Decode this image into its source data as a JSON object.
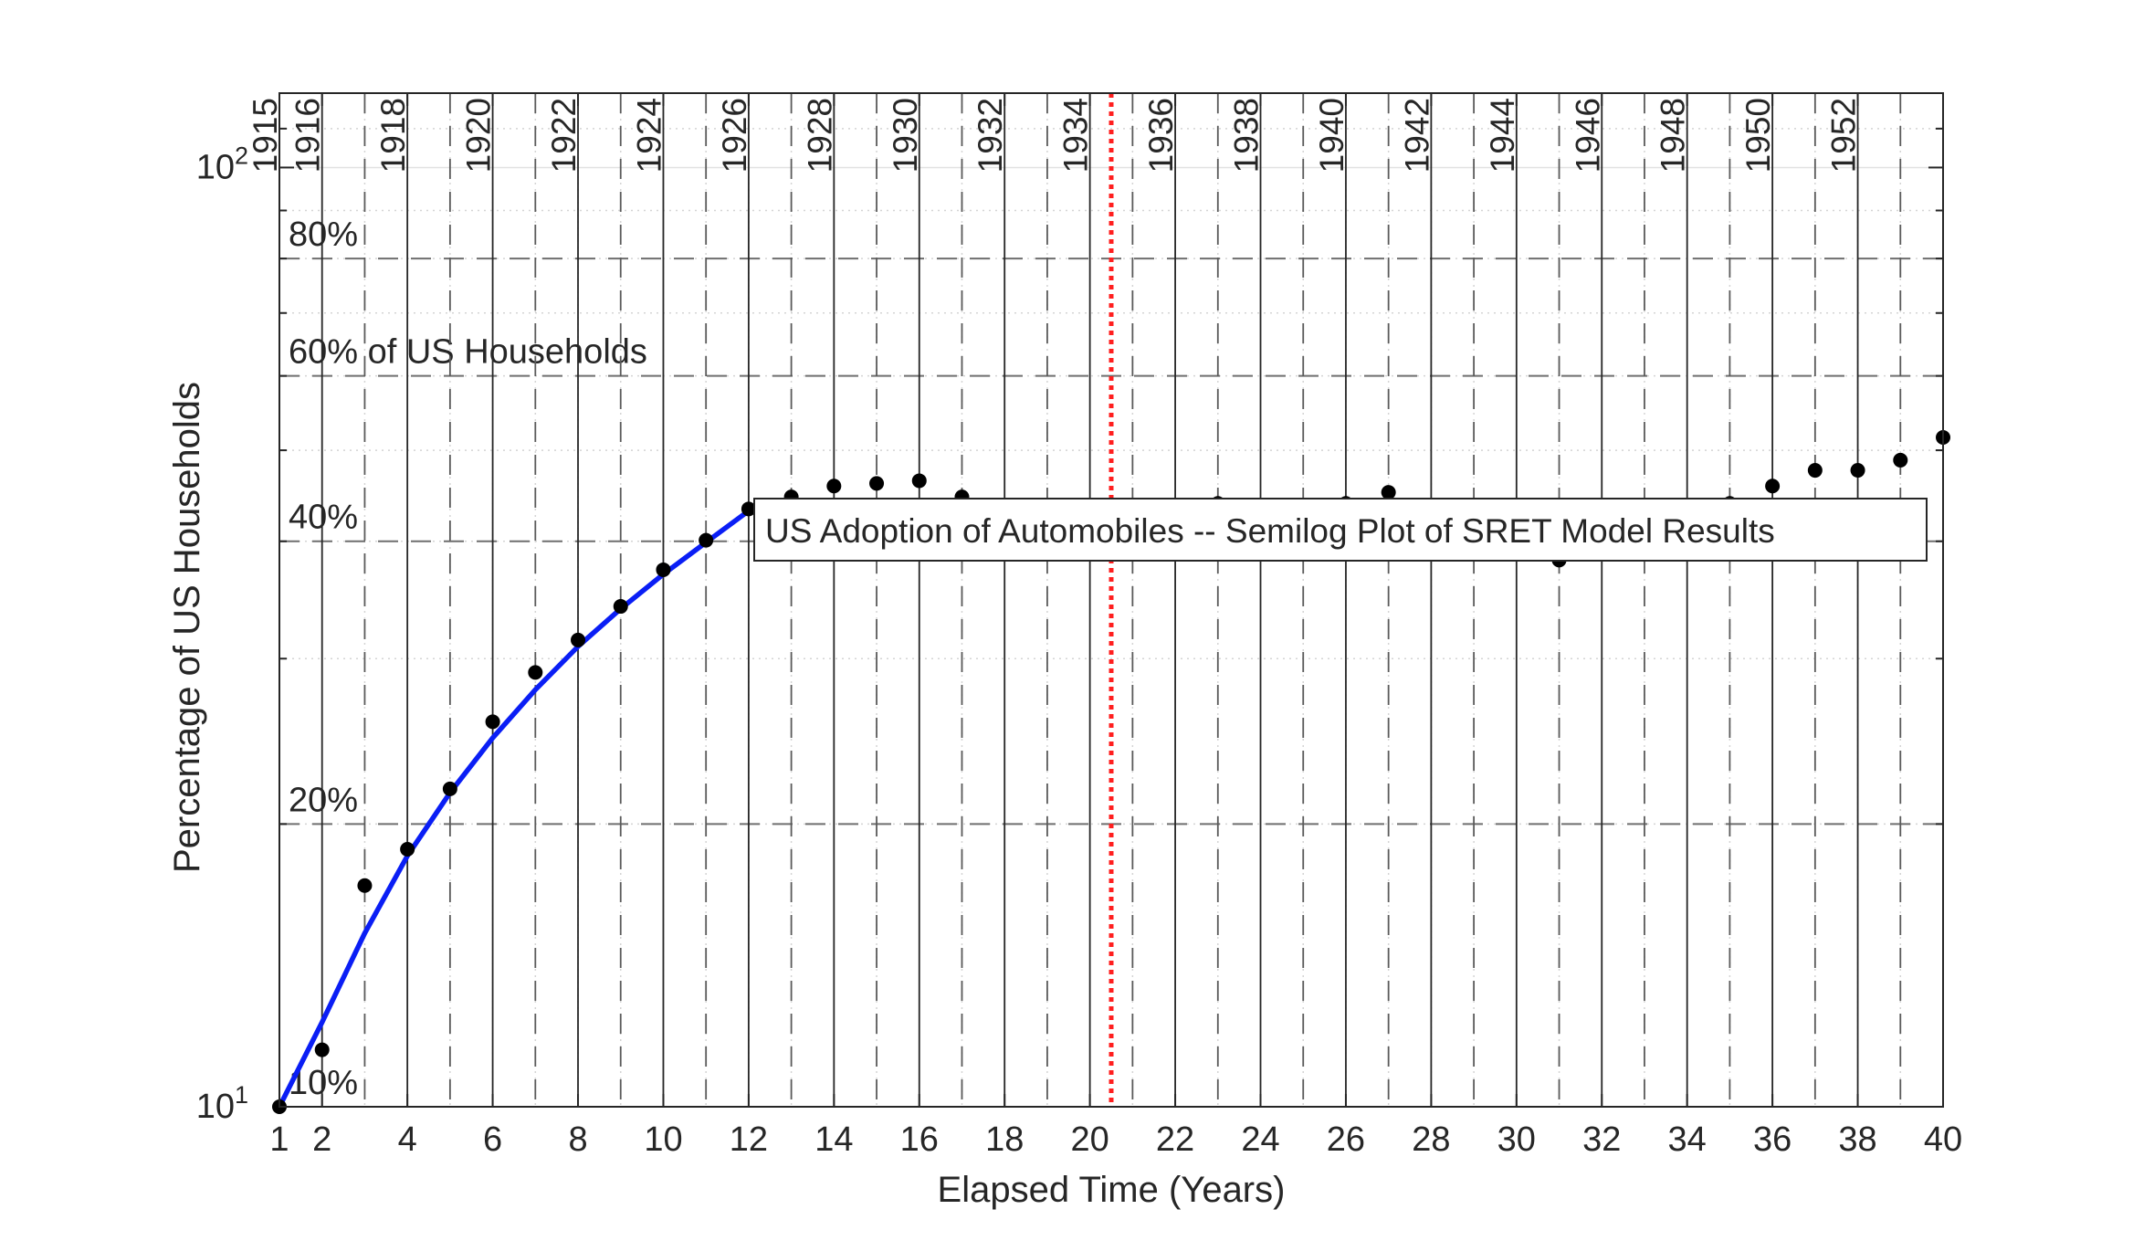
{
  "chart_data": {
    "type": "scatter",
    "title": "",
    "xlabel": "Elapsed Time (Years)",
    "ylabel": "Percentage of US Households",
    "xlim": [
      1,
      40
    ],
    "ylim": [
      10,
      120
    ],
    "yscale": "log",
    "grid": "major and minor",
    "x_ticks": [
      1,
      2,
      4,
      6,
      8,
      10,
      12,
      14,
      16,
      18,
      20,
      22,
      24,
      26,
      28,
      30,
      32,
      34,
      36,
      38,
      40
    ],
    "y_ticks": [
      {
        "value": 10,
        "base": "10",
        "exp": "1"
      },
      {
        "value": 100,
        "base": "10",
        "exp": "2"
      }
    ],
    "year_markers": [
      {
        "x": 1,
        "label": "1915"
      },
      {
        "x": 2,
        "label": "1916"
      },
      {
        "x": 4,
        "label": "1918"
      },
      {
        "x": 6,
        "label": "1920"
      },
      {
        "x": 8,
        "label": "1922"
      },
      {
        "x": 10,
        "label": "1924"
      },
      {
        "x": 12,
        "label": "1926"
      },
      {
        "x": 14,
        "label": "1928"
      },
      {
        "x": 16,
        "label": "1930"
      },
      {
        "x": 18,
        "label": "1932"
      },
      {
        "x": 20,
        "label": "1934"
      },
      {
        "x": 22,
        "label": "1936"
      },
      {
        "x": 24,
        "label": "1938"
      },
      {
        "x": 26,
        "label": "1940"
      },
      {
        "x": 28,
        "label": "1942"
      },
      {
        "x": 30,
        "label": "1944"
      },
      {
        "x": 32,
        "label": "1946"
      },
      {
        "x": 34,
        "label": "1948"
      },
      {
        "x": 36,
        "label": "1950"
      },
      {
        "x": 38,
        "label": "1952"
      }
    ],
    "percent_lines": [
      {
        "value": 20,
        "label": "20%"
      },
      {
        "value": 40,
        "label": "40%"
      },
      {
        "value": 60,
        "label": "60% of US Households"
      },
      {
        "value": 80,
        "label": "80%"
      }
    ],
    "percent_label_10": "10%",
    "vertical_marker": {
      "x": 20.5,
      "color": "#ff1f1f",
      "style": "dotted"
    },
    "annotation": "US Adoption of Automobiles -- Semilog Plot of SRET Model Results",
    "series": [
      {
        "type": "scatter",
        "color": "#000000",
        "x": [
          1,
          2,
          3,
          4,
          5,
          6,
          7,
          8,
          9,
          10,
          11,
          12,
          13,
          14,
          15,
          16,
          17,
          18,
          19,
          20,
          21,
          22,
          23,
          24,
          25,
          26,
          27,
          28,
          29,
          30,
          31,
          32,
          33,
          34,
          35,
          36,
          37,
          38,
          39,
          40
        ],
        "y": [
          10.0,
          11.5,
          17.2,
          18.8,
          21.8,
          25.7,
          29.0,
          31.4,
          34.1,
          37.3,
          40.1,
          43.3,
          44.6,
          45.8,
          46.1,
          46.4,
          44.6,
          42.7,
          40.8,
          41.4,
          41.9,
          43.4,
          43.9,
          43.4,
          43.4,
          43.9,
          45.1,
          42.7,
          40.1,
          38.8,
          38.2,
          39.5,
          41.4,
          42.7,
          43.9,
          45.8,
          47.6,
          47.6,
          48.8,
          51.6
        ]
      },
      {
        "type": "line",
        "color": "#0a1ef5",
        "x": [
          1,
          2,
          3,
          4,
          5,
          6,
          7,
          8,
          9,
          10,
          11,
          12
        ],
        "y": [
          10.0,
          12.3,
          15.3,
          18.5,
          21.6,
          24.7,
          27.8,
          30.9,
          33.9,
          36.9,
          39.9,
          43.1
        ]
      }
    ]
  }
}
